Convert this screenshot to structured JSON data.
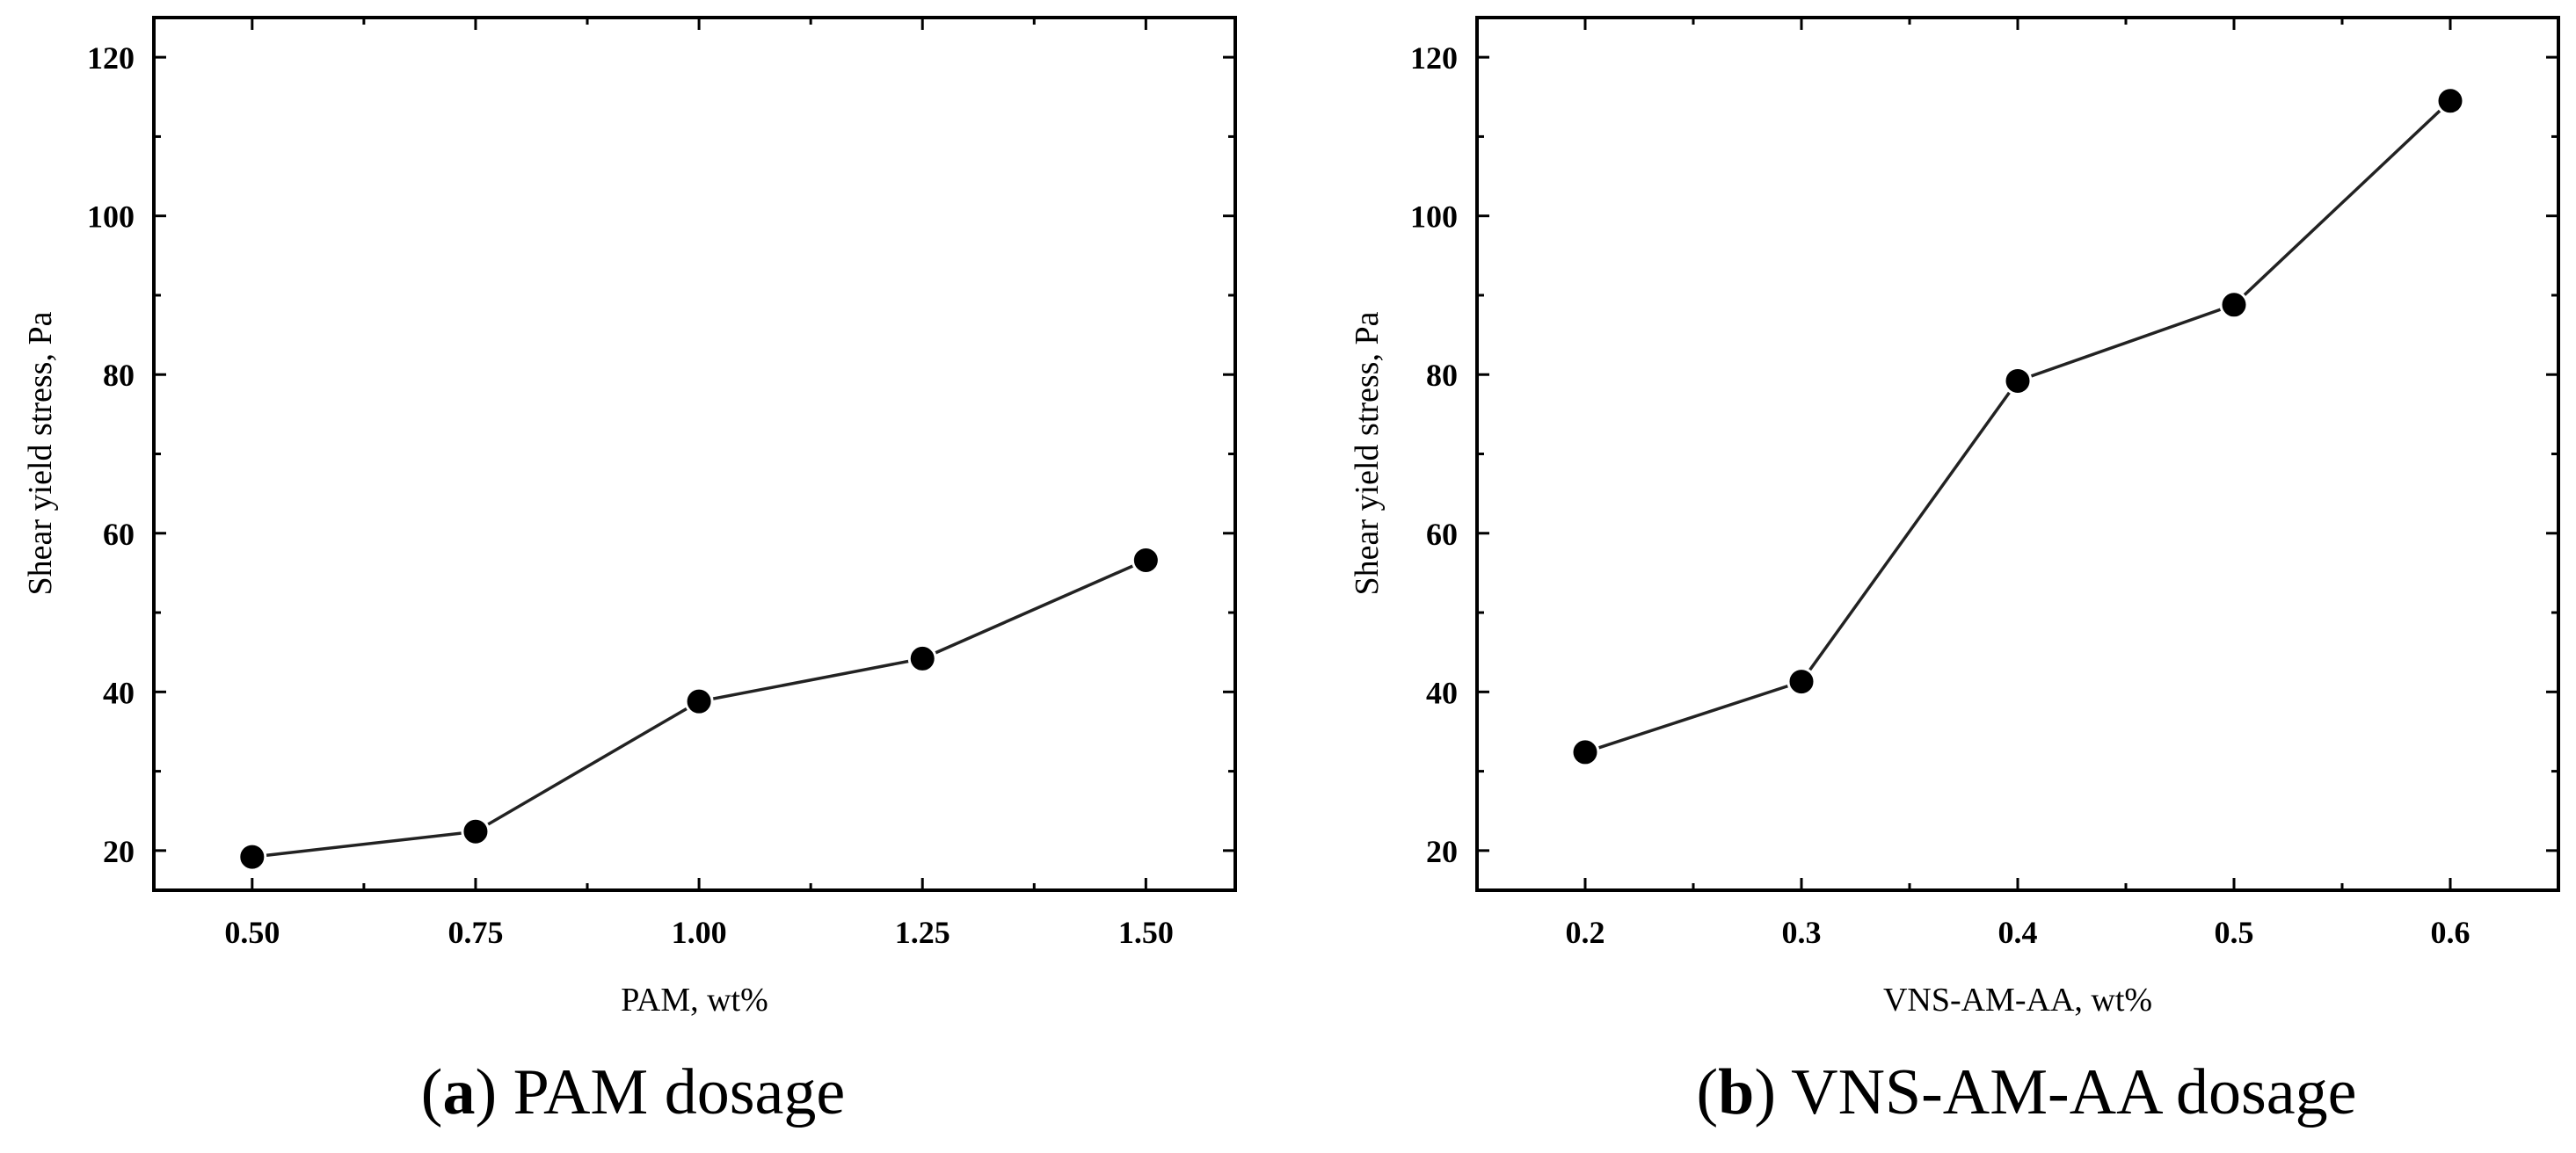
{
  "chart_data": [
    {
      "type": "line",
      "panel": "a",
      "caption": {
        "letter": "a",
        "text": "PAM dosage"
      },
      "xlabel": "PAM, wt%",
      "ylabel": "Shear yield stress, Pa",
      "xlim": [
        0.39,
        1.6
      ],
      "ylim": [
        15,
        125
      ],
      "x_ticks": [
        "0.50",
        "0.75",
        "1.00",
        "1.25",
        "1.50"
      ],
      "x_tick_values": [
        0.5,
        0.75,
        1.0,
        1.25,
        1.5
      ],
      "y_ticks": [
        "20",
        "40",
        "60",
        "80",
        "100",
        "120"
      ],
      "y_tick_values": [
        20,
        40,
        60,
        80,
        100,
        120
      ],
      "series": [
        {
          "name": "PAM",
          "x": [
            0.5,
            0.75,
            1.0,
            1.25,
            1.5
          ],
          "values": [
            19.2,
            22.4,
            38.8,
            44.2,
            56.6
          ]
        }
      ]
    },
    {
      "type": "line",
      "panel": "b",
      "caption": {
        "letter": "b",
        "text": "VNS-AM-AA dosage"
      },
      "xlabel": "VNS-AM-AA, wt%",
      "ylabel": "Shear yield stress, Pa",
      "xlim": [
        0.15,
        0.65
      ],
      "ylim": [
        15,
        125
      ],
      "x_ticks": [
        "0.2",
        "0.3",
        "0.4",
        "0.5",
        "0.6"
      ],
      "x_tick_values": [
        0.2,
        0.3,
        0.4,
        0.5,
        0.6
      ],
      "y_ticks": [
        "20",
        "40",
        "60",
        "80",
        "100",
        "120"
      ],
      "y_tick_values": [
        20,
        40,
        60,
        80,
        100,
        120
      ],
      "series": [
        {
          "name": "VNS-AM-AA",
          "x": [
            0.2,
            0.3,
            0.4,
            0.5,
            0.6
          ],
          "values": [
            32.4,
            41.3,
            79.2,
            88.8,
            114.5
          ]
        }
      ]
    }
  ]
}
